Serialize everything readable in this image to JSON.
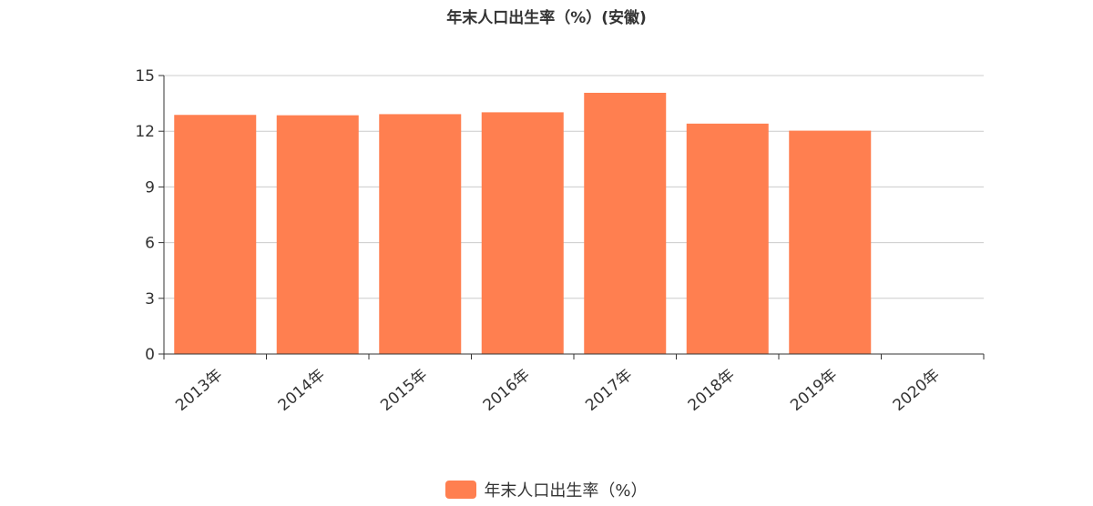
{
  "chart_data": {
    "type": "bar",
    "title": "年末人口出生率（%）(安徽)",
    "categories": [
      "2013年",
      "2014年",
      "2015年",
      "2016年",
      "2017年",
      "2018年",
      "2019年",
      "2020年"
    ],
    "series": [
      {
        "name": "年末人口出生率（%）",
        "values": [
          12.88,
          12.86,
          12.92,
          13.02,
          14.07,
          12.41,
          12.03,
          null
        ]
      }
    ],
    "ylim": [
      0,
      15
    ],
    "yticks": [
      0,
      3,
      6,
      9,
      12,
      15
    ],
    "xlabel": "",
    "ylabel": "",
    "grid": true,
    "legend_position": "bottom-center",
    "bar_color": "#FF7F50"
  }
}
